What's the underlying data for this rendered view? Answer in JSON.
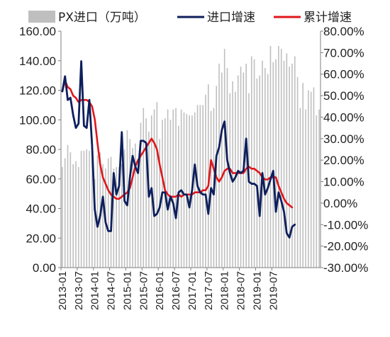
{
  "colors": {
    "bars": "#bfbfbf",
    "yoy_line": "#0d1f5c",
    "cum_line": "#e0161b",
    "axis": "#7f7f7f",
    "text": "#222222"
  },
  "chart_data": {
    "type": "bar",
    "legend_position": "top",
    "grid": false,
    "x_ticks": [
      "2013-01",
      "2013-07",
      "2014-01",
      "2014-07",
      "2015-01",
      "2015-07",
      "2016-01",
      "2016-07",
      "2017-01",
      "2017-07",
      "2018-01",
      "2018-07",
      "2019-01",
      "2019-07"
    ],
    "y_left": {
      "min": 0,
      "max": 160,
      "step": 20,
      "tick_labels": [
        "0.00",
        "20.00",
        "40.00",
        "60.00",
        "80.00",
        "100.00",
        "120.00",
        "140.00",
        "160.00"
      ]
    },
    "y_right": {
      "min": -30,
      "max": 80,
      "step": 10,
      "tick_labels": [
        "-30.00%",
        "-20.00%",
        "-10.00%",
        "0.00%",
        "10.00%",
        "20.00%",
        "30.00%",
        "40.00%",
        "50.00%",
        "60.00%",
        "70.00%",
        "80.00%"
      ]
    },
    "series": [
      {
        "name": "PX进口（万吨）",
        "type": "bar",
        "axis": "left",
        "values": [
          68,
          74,
          83,
          78,
          70,
          72,
          68,
          79,
          79,
          80,
          79,
          84,
          60,
          76,
          78,
          70,
          67,
          74,
          75,
          67,
          68,
          68,
          70,
          80,
          93,
          87,
          81,
          84,
          70,
          98,
          108,
          101,
          92,
          103,
          107,
          112,
          87,
          100,
          101,
          107,
          100,
          107,
          108,
          96,
          107,
          105,
          104,
          103,
          103,
          105,
          110,
          110,
          110,
          117,
          124,
          106,
          108,
          123,
          138,
          132,
          148,
          135,
          118,
          126,
          119,
          130,
          136,
          132,
          138,
          118,
          143,
          141,
          128,
          130,
          140,
          135,
          131,
          150,
          139,
          141,
          150,
          148,
          140,
          145,
          136,
          138,
          143,
          129,
          108,
          125,
          107,
          120,
          119,
          122,
          103,
          107
        ]
      },
      {
        "name": "进口增速",
        "type": "line",
        "axis": "right",
        "values": [
          52,
          59,
          48,
          49,
          41,
          35,
          37,
          66,
          36,
          35,
          48,
          27,
          -3,
          -11,
          -6,
          3,
          -9,
          -13,
          -13,
          14,
          4,
          8,
          33,
          1,
          -1,
          12,
          22,
          17,
          14,
          29,
          29,
          28,
          3,
          7,
          -6,
          -5,
          -2,
          5,
          5,
          -3,
          3,
          0,
          -7,
          5,
          6,
          4,
          4,
          -2,
          6,
          18,
          8,
          5,
          4,
          4,
          -5,
          7,
          4,
          22,
          26,
          34,
          38,
          20,
          14,
          10,
          12,
          15,
          14,
          15,
          30,
          10,
          9,
          9,
          8,
          -6,
          14,
          4,
          7,
          11,
          15,
          -4,
          5,
          1,
          -4,
          -14,
          -16,
          -11,
          -10
        ]
      },
      {
        "name": "累计增速",
        "type": "line",
        "axis": "right",
        "values": [
          52,
          57,
          54,
          53,
          50,
          49,
          47,
          48,
          48,
          48,
          47,
          45,
          39,
          28,
          18,
          12,
          9,
          6,
          4,
          3,
          2,
          2,
          3,
          4,
          5,
          7,
          12,
          17,
          20,
          22,
          24,
          26,
          28,
          30,
          28,
          25,
          18,
          12,
          6,
          4,
          3,
          3,
          3,
          4,
          3,
          4,
          4,
          4,
          4,
          5,
          5,
          5,
          6,
          6,
          8,
          20,
          16,
          12,
          10,
          12,
          15,
          16,
          16,
          14,
          14,
          14,
          14,
          14,
          16,
          17,
          16,
          16,
          15,
          14,
          12,
          11,
          11,
          12,
          12,
          12,
          8,
          5,
          2,
          0,
          -1,
          -2
        ]
      }
    ]
  }
}
